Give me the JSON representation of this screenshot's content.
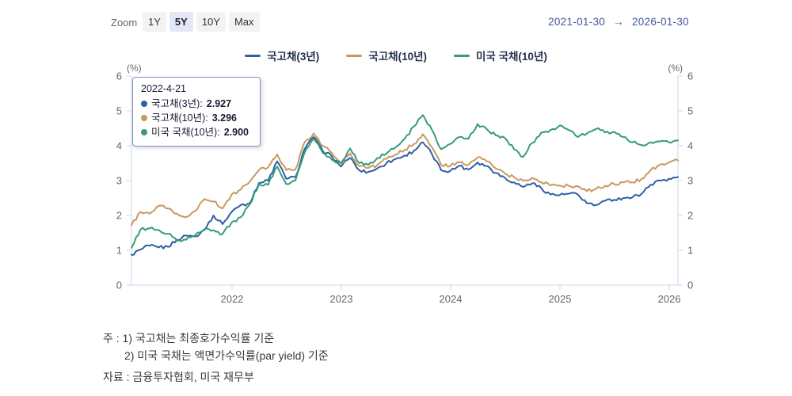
{
  "header": {
    "zoom_label": "Zoom",
    "zoom_buttons": [
      {
        "label": "1Y",
        "selected": false
      },
      {
        "label": "5Y",
        "selected": true
      },
      {
        "label": "10Y",
        "selected": false
      },
      {
        "label": "Max",
        "selected": false
      }
    ],
    "range": {
      "from": "2021-01-30",
      "arrow": "→",
      "to": "2026-01-30"
    }
  },
  "tooltip": {
    "date": "2022-4-21",
    "rows": [
      {
        "label": "국고채(3년)",
        "value": "2.927",
        "color": "#2e5fa6"
      },
      {
        "label": "국고채(10년)",
        "value": "3.296",
        "color": "#c8995f"
      },
      {
        "label": "미국 국채(10년)",
        "value": "2.900",
        "color": "#359b7b"
      }
    ]
  },
  "chart_data": {
    "type": "line",
    "title": "",
    "y_unit": "(%)",
    "ylim": [
      0,
      6
    ],
    "y_ticks": [
      0,
      1,
      2,
      3,
      4,
      5,
      6
    ],
    "x_start": "2021-01-30",
    "x_end": "2026-01-30",
    "x_tick_labels": [
      "2022",
      "2023",
      "2024",
      "2025",
      "2026"
    ],
    "grid": false,
    "legend_position": "top-center",
    "sampling": "monthly",
    "series": [
      {
        "name": "국고채(3년)",
        "color": "#2e5fa6",
        "values": [
          0.87,
          1.02,
          1.13,
          1.08,
          1.1,
          1.3,
          1.42,
          1.4,
          1.58,
          2.0,
          1.75,
          2.1,
          2.3,
          2.35,
          2.93,
          3.0,
          3.55,
          3.05,
          3.1,
          3.9,
          4.25,
          3.85,
          3.7,
          3.4,
          3.65,
          3.3,
          3.25,
          3.35,
          3.5,
          3.62,
          3.72,
          3.85,
          4.1,
          3.75,
          3.3,
          3.28,
          3.42,
          3.32,
          3.52,
          3.42,
          3.22,
          3.08,
          2.95,
          2.82,
          2.92,
          2.78,
          2.6,
          2.58,
          2.62,
          2.6,
          2.35,
          2.3,
          2.42,
          2.45,
          2.5,
          2.52,
          2.62,
          2.88,
          3.0,
          3.05,
          3.1
        ]
      },
      {
        "name": "국고채(10년)",
        "color": "#c8995f",
        "values": [
          1.72,
          2.1,
          2.05,
          2.28,
          2.2,
          2.05,
          1.95,
          2.12,
          2.47,
          2.4,
          2.2,
          2.6,
          2.74,
          2.97,
          3.3,
          3.38,
          3.75,
          3.3,
          3.32,
          4.1,
          4.35,
          4.0,
          3.8,
          3.5,
          3.78,
          3.42,
          3.36,
          3.45,
          3.62,
          3.75,
          3.88,
          4.05,
          4.33,
          3.95,
          3.45,
          3.42,
          3.52,
          3.45,
          3.67,
          3.55,
          3.35,
          3.2,
          3.1,
          3.0,
          3.08,
          2.95,
          2.86,
          2.86,
          2.85,
          2.84,
          2.7,
          2.76,
          2.85,
          2.9,
          2.95,
          2.95,
          3.05,
          3.3,
          3.45,
          3.52,
          3.58
        ]
      },
      {
        "name": "미국 국채(10년)",
        "color": "#359b7b",
        "values": [
          1.07,
          1.6,
          1.63,
          1.58,
          1.47,
          1.28,
          1.3,
          1.43,
          1.6,
          1.58,
          1.47,
          1.8,
          1.95,
          2.32,
          2.9,
          2.88,
          3.4,
          2.9,
          3.0,
          3.8,
          4.2,
          3.8,
          3.6,
          3.5,
          3.92,
          3.5,
          3.45,
          3.65,
          3.78,
          3.95,
          4.2,
          4.55,
          4.88,
          4.45,
          3.9,
          4.05,
          4.25,
          4.2,
          4.62,
          4.48,
          4.3,
          4.22,
          3.9,
          3.68,
          4.08,
          4.38,
          4.45,
          4.58,
          4.45,
          4.25,
          4.35,
          4.48,
          4.38,
          4.4,
          4.25,
          4.1,
          4.02,
          4.1,
          4.12,
          4.1,
          4.15
        ]
      }
    ]
  },
  "notes": {
    "line1": "주 : 1) 국고채는 최종호가수익률 기준",
    "line2": "2) 미국 국채는 액면가수익률(par yield) 기준",
    "source": "자료 : 금융투자협회, 미국 재무부"
  }
}
